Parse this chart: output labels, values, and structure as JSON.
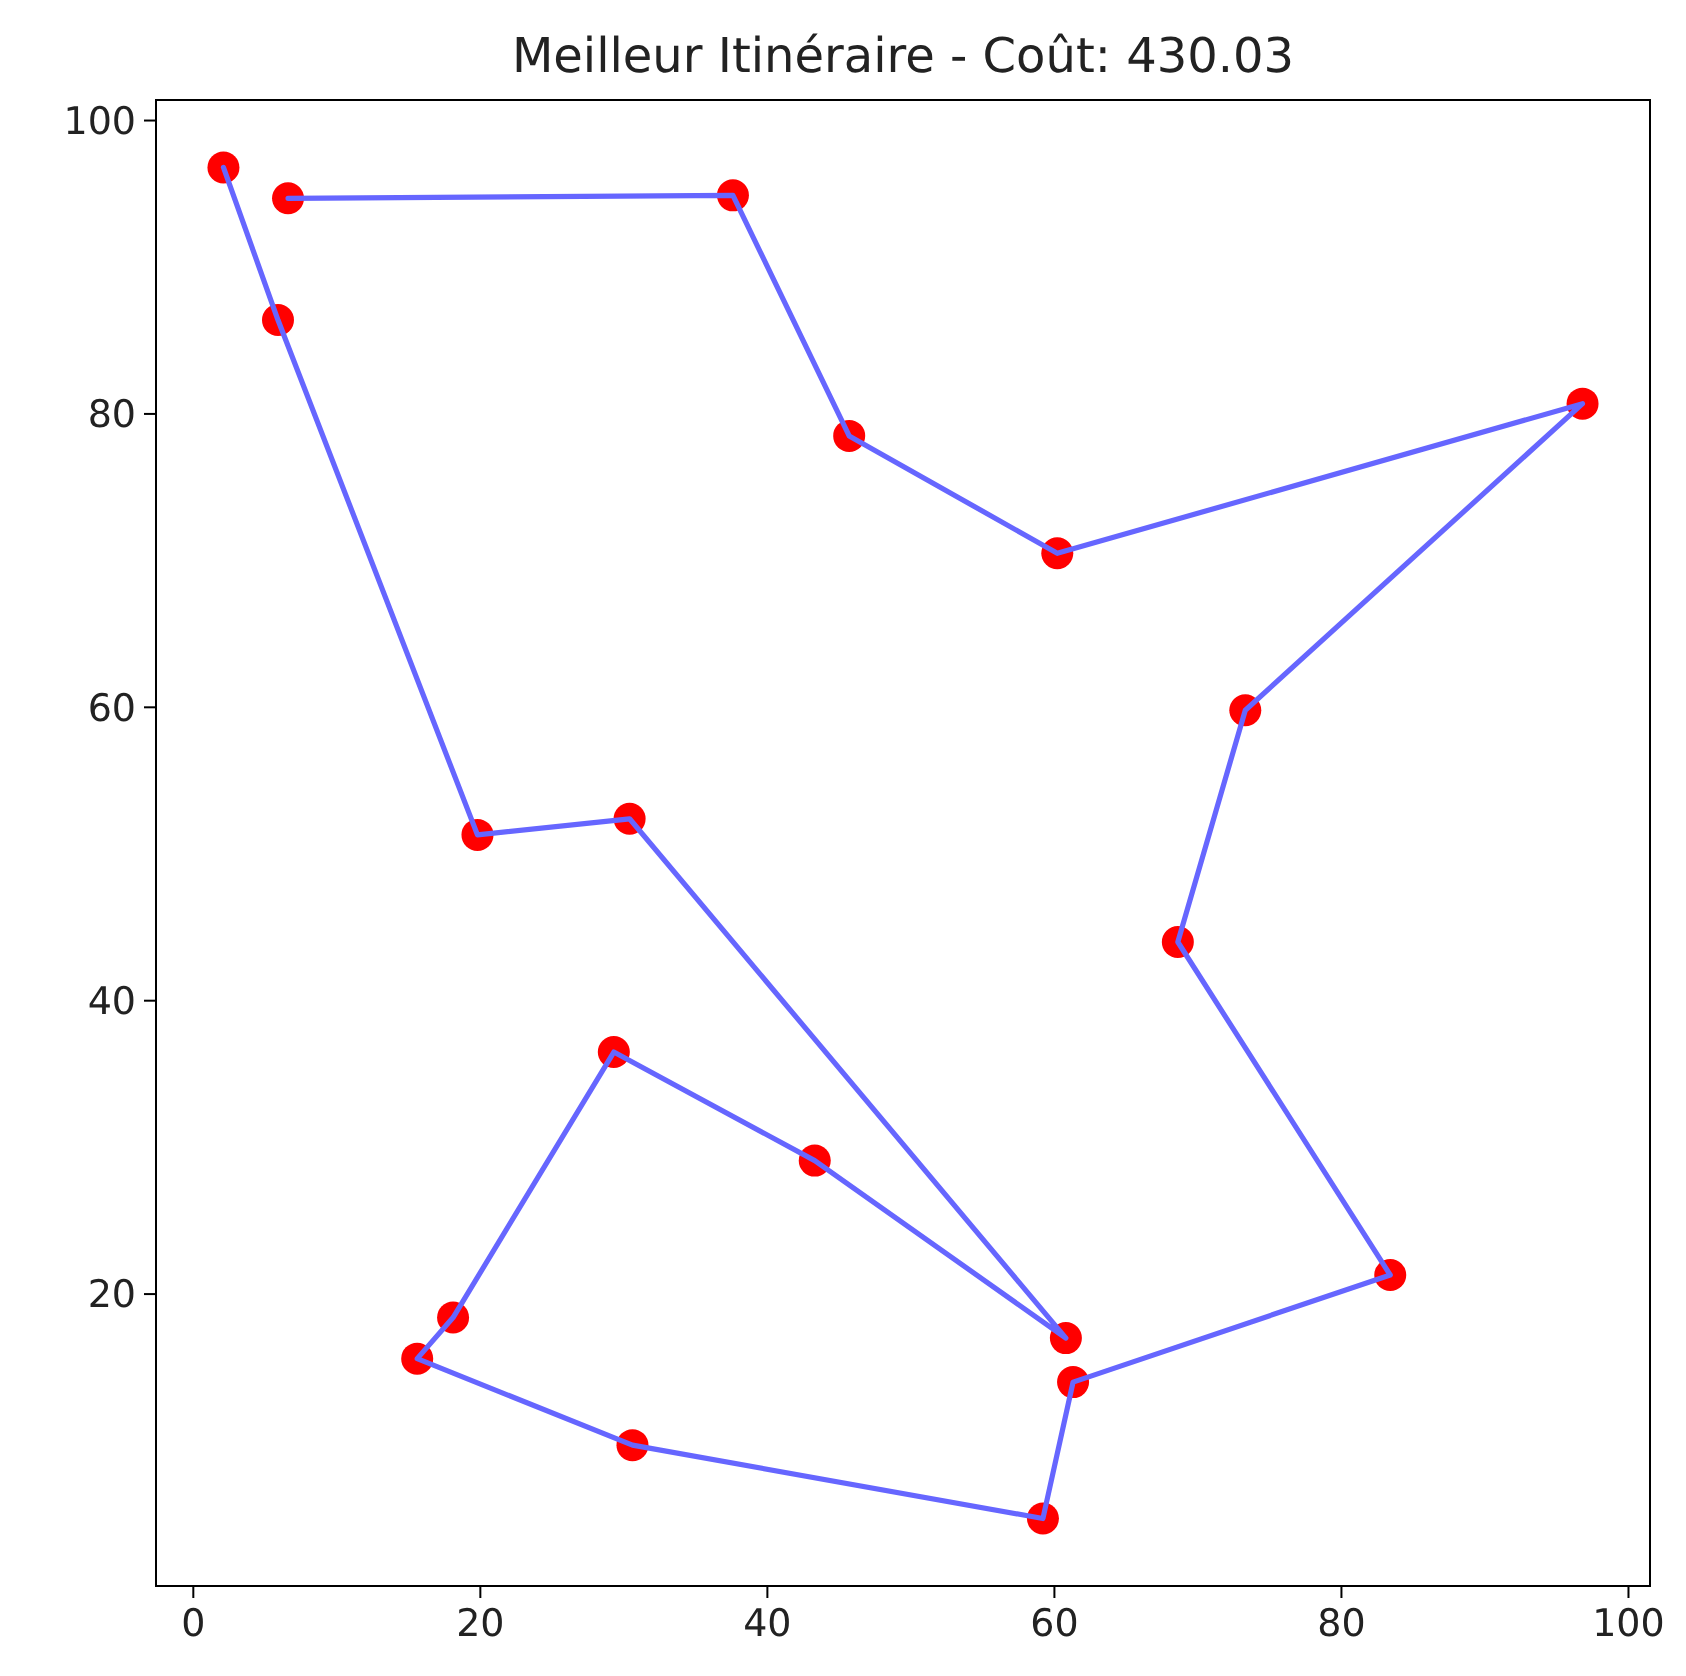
{
  "chart_data": {
    "type": "scatter",
    "title": "Meilleur Itinéraire - Coût: 430.03",
    "xlim": [
      -2.6,
      101.5
    ],
    "ylim": [
      0.1,
      101.4
    ],
    "xticks": [
      0,
      20,
      40,
      60,
      80,
      100
    ],
    "yticks": [
      20,
      40,
      60,
      80,
      100
    ],
    "series": [
      {
        "color": "#ff0000",
        "x": [
          6.6,
          37.6,
          45.7,
          60.2,
          96.8,
          73.3,
          68.6,
          83.4,
          61.3,
          59.2,
          30.6,
          15.6,
          18.1,
          29.3,
          43.3,
          60.8,
          30.4,
          19.8,
          5.9,
          2.1
        ],
        "values": [
          94.7,
          94.9,
          78.5,
          70.5,
          80.7,
          59.8,
          44.0,
          21.3,
          14.0,
          4.7,
          9.7,
          15.6,
          18.4,
          36.5,
          29.1,
          17.0,
          52.4,
          51.3,
          86.4,
          96.8
        ]
      },
      {
        "type": "line",
        "color": "#6666ff",
        "x": [
          6.6,
          37.6,
          45.7,
          60.2,
          96.8,
          73.3,
          68.6,
          83.4,
          61.3,
          59.2,
          30.6,
          15.6,
          18.1,
          29.3,
          43.3,
          60.8,
          30.4,
          19.8,
          5.9,
          2.1
        ],
        "values": [
          94.7,
          94.9,
          78.5,
          70.5,
          80.7,
          59.8,
          44.0,
          21.3,
          14.0,
          4.7,
          9.7,
          15.6,
          18.4,
          36.5,
          29.1,
          17.0,
          52.4,
          51.3,
          86.4,
          96.8
        ]
      }
    ]
  }
}
